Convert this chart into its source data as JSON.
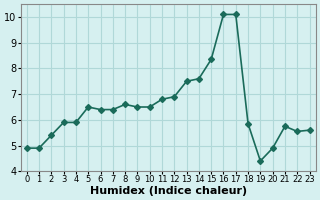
{
  "x": [
    0,
    1,
    2,
    3,
    4,
    5,
    6,
    7,
    8,
    9,
    10,
    11,
    12,
    13,
    14,
    15,
    16,
    17,
    18,
    19,
    20,
    21,
    22,
    23
  ],
  "y": [
    4.9,
    4.9,
    5.4,
    5.9,
    5.9,
    6.5,
    6.4,
    6.4,
    6.6,
    6.5,
    6.5,
    6.8,
    6.9,
    7.5,
    7.6,
    8.35,
    10.1,
    10.1,
    5.85,
    4.4,
    4.9,
    5.75,
    5.55,
    5.6
  ],
  "line_color": "#1a6b5a",
  "marker": "D",
  "markersize": 3,
  "bg_color": "#d6f0f0",
  "grid_color": "#b0d8d8",
  "xlabel": "Humidex (Indice chaleur)",
  "xlim": [
    -0.5,
    23.5
  ],
  "ylim": [
    4,
    10.5
  ],
  "yticks": [
    4,
    5,
    6,
    7,
    8,
    9,
    10
  ],
  "xticks": [
    0,
    1,
    2,
    3,
    4,
    5,
    6,
    7,
    8,
    9,
    10,
    11,
    12,
    13,
    14,
    15,
    16,
    17,
    18,
    19,
    20,
    21,
    22,
    23
  ],
  "linewidth": 1.2,
  "xlabel_fontsize": 8,
  "tick_fontsize": 7
}
